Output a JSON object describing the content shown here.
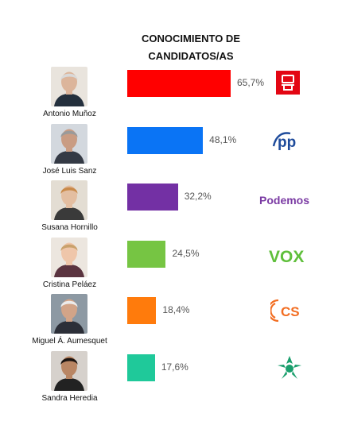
{
  "chart_data": {
    "type": "bar",
    "orientation": "horizontal",
    "title": "CONOCIMIENTO DE CANDIDATOS/AS",
    "title_lines": [
      "CONOCIMIENTO DE",
      "CANDIDATOS/AS"
    ],
    "categories": [
      "Antonio Muñoz",
      "José Luis Sanz",
      "Susana Hornillo",
      "Cristina Peláez",
      "Miguel Á. Aumesquet",
      "Sandra Heredia"
    ],
    "values": [
      65.7,
      48.1,
      32.2,
      24.5,
      18.4,
      17.6
    ],
    "value_labels": [
      "65,7%",
      "48,1%",
      "32,2%",
      "24,5%",
      "18,4%",
      "17,6%"
    ],
    "colors": [
      "#ff0000",
      "#0a74f5",
      "#7330a4",
      "#76c543",
      "#ff7b0c",
      "#1fc99a"
    ],
    "party_logos": [
      "psoe-logo",
      "pp-logo",
      "podemos-logo",
      "vox-logo",
      "cs-logo",
      "andalucia-logo"
    ],
    "party_logo_text": [
      "",
      "pp",
      "Podemos",
      "VOX",
      "CS",
      ""
    ],
    "xlim": [
      0,
      100
    ],
    "grid": false,
    "legend": "none"
  }
}
